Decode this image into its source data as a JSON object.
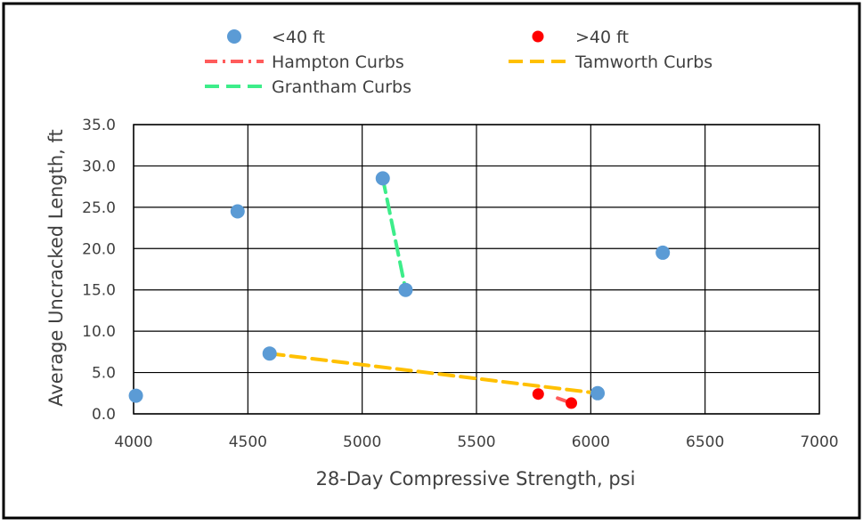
{
  "chart_data": {
    "type": "scatter",
    "title": "",
    "xlabel": "28-Day Compressive Strength, psi",
    "ylabel": "Average Uncracked Length, ft",
    "xlim": [
      4000,
      7000
    ],
    "ylim": [
      0,
      35
    ],
    "x_ticks": [
      "4000",
      "4500",
      "5000",
      "5500",
      "6000",
      "6500",
      "7000"
    ],
    "y_ticks": [
      "0.0",
      "5.0",
      "10.0",
      "15.0",
      "20.0",
      "25.0",
      "30.0",
      "35.0"
    ],
    "grid": true,
    "legend_position": "top",
    "series": [
      {
        "name": "<40 ft",
        "kind": "points",
        "color": "#5b9bd5",
        "points": [
          {
            "x": 4010,
            "y": 2.2
          },
          {
            "x": 4455,
            "y": 24.5
          },
          {
            "x": 4595,
            "y": 7.3
          },
          {
            "x": 5090,
            "y": 28.5
          },
          {
            "x": 5190,
            "y": 15.0
          },
          {
            "x": 6030,
            "y": 2.5
          },
          {
            "x": 6315,
            "y": 19.5
          }
        ]
      },
      {
        "name": ">40 ft",
        "kind": "points",
        "color": "#ff0000",
        "points": [
          {
            "x": 5770,
            "y": 2.4
          },
          {
            "x": 5915,
            "y": 1.3
          }
        ]
      },
      {
        "name": "Hampton Curbs",
        "kind": "line",
        "dash": "dash-dot",
        "color": "#ff5b5b",
        "points": [
          {
            "x": 5855,
            "y": 1.9
          },
          {
            "x": 5915,
            "y": 1.3
          }
        ]
      },
      {
        "name": "Tamworth Curbs",
        "kind": "line",
        "dash": "dash",
        "color": "#ffc000",
        "points": [
          {
            "x": 4595,
            "y": 7.3
          },
          {
            "x": 6030,
            "y": 2.5
          }
        ]
      },
      {
        "name": "Grantham Curbs",
        "kind": "line",
        "dash": "dash",
        "color": "#3ded8a",
        "points": [
          {
            "x": 5090,
            "y": 28.5
          },
          {
            "x": 5190,
            "y": 15.0
          }
        ]
      }
    ]
  }
}
